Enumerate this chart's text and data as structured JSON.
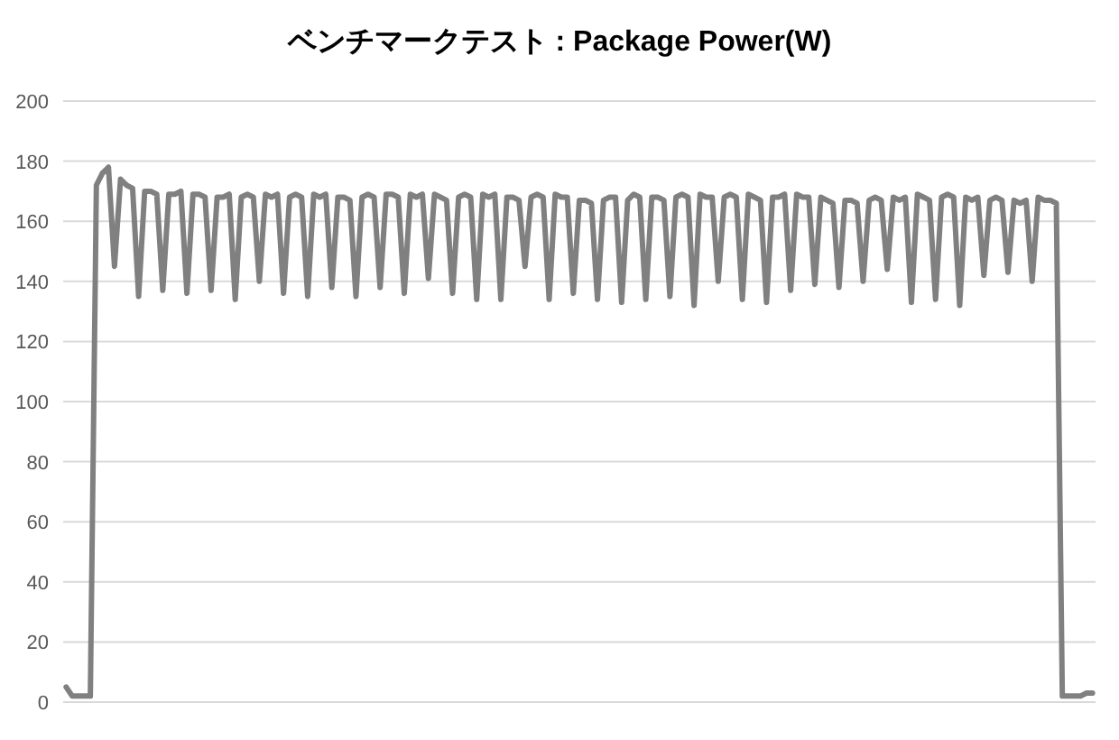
{
  "chart_data": {
    "type": "line",
    "title": "ベンチマークテスト : Package Power(W)",
    "categories": [
      null,
      null,
      null,
      null,
      null,
      null,
      null,
      null,
      null,
      null,
      null,
      null,
      null,
      null,
      null,
      null,
      null,
      null,
      null,
      null,
      null,
      null,
      null,
      null,
      null,
      null,
      null,
      null,
      null,
      null,
      null,
      null,
      null,
      null,
      null,
      null,
      null,
      null,
      null,
      null,
      null,
      null,
      null,
      null,
      null,
      null,
      null,
      null,
      null,
      null,
      null,
      null,
      null,
      null,
      null,
      null,
      null,
      null,
      null,
      null,
      null,
      null,
      null,
      null,
      null,
      null,
      null,
      null,
      null,
      null,
      null,
      null,
      null,
      null,
      null,
      null,
      null,
      null,
      null,
      null,
      null,
      null,
      null,
      null,
      null,
      null,
      null,
      null,
      null,
      null,
      null,
      null,
      null,
      null,
      null,
      null,
      null,
      null,
      null,
      null,
      null,
      null,
      null,
      null,
      null,
      null,
      null,
      null,
      null,
      null,
      null,
      null,
      null,
      null,
      null,
      null,
      null,
      null,
      null,
      null,
      null,
      null,
      null,
      null,
      null,
      null,
      null,
      null,
      null,
      null,
      null,
      null,
      null,
      null,
      null,
      null,
      null,
      null,
      null,
      null,
      null,
      null,
      null,
      null,
      null,
      null,
      null,
      null,
      null,
      null,
      null,
      null,
      null,
      null,
      null,
      null,
      null,
      null,
      null,
      null,
      null,
      null,
      null,
      null,
      null,
      null,
      null,
      null,
      null,
      null,
      null
    ],
    "series": [
      {
        "color": "#808080",
        "values": [
          5,
          2,
          2,
          2,
          2,
          172,
          176,
          178,
          145,
          174,
          172,
          171,
          135,
          170,
          170,
          169,
          137,
          169,
          169,
          170,
          136,
          169,
          169,
          168,
          137,
          168,
          168,
          169,
          134,
          168,
          169,
          168,
          140,
          169,
          168,
          169,
          136,
          168,
          169,
          168,
          135,
          169,
          168,
          169,
          138,
          168,
          168,
          167,
          135,
          168,
          169,
          168,
          138,
          169,
          169,
          168,
          136,
          169,
          168,
          169,
          141,
          169,
          168,
          167,
          136,
          168,
          169,
          168,
          134,
          169,
          168,
          169,
          134,
          168,
          168,
          167,
          145,
          168,
          169,
          168,
          134,
          169,
          168,
          168,
          136,
          167,
          167,
          166,
          134,
          167,
          168,
          168,
          133,
          167,
          169,
          168,
          134,
          168,
          168,
          167,
          135,
          168,
          169,
          168,
          132,
          169,
          168,
          168,
          140,
          168,
          169,
          168,
          134,
          169,
          168,
          167,
          133,
          168,
          168,
          169,
          137,
          169,
          168,
          168,
          139,
          168,
          167,
          166,
          138,
          167,
          167,
          166,
          140,
          167,
          168,
          167,
          144,
          168,
          167,
          168,
          133,
          169,
          168,
          167,
          134,
          168,
          169,
          168,
          132,
          168,
          167,
          168,
          142,
          167,
          168,
          167,
          143,
          167,
          166,
          167,
          140,
          168,
          167,
          167,
          166,
          2,
          2,
          2,
          2,
          3,
          3
        ]
      }
    ],
    "ylim": [
      0,
      200
    ],
    "yticks": [
      0,
      20,
      40,
      60,
      80,
      100,
      120,
      140,
      160,
      180,
      200
    ],
    "grid": "y"
  }
}
